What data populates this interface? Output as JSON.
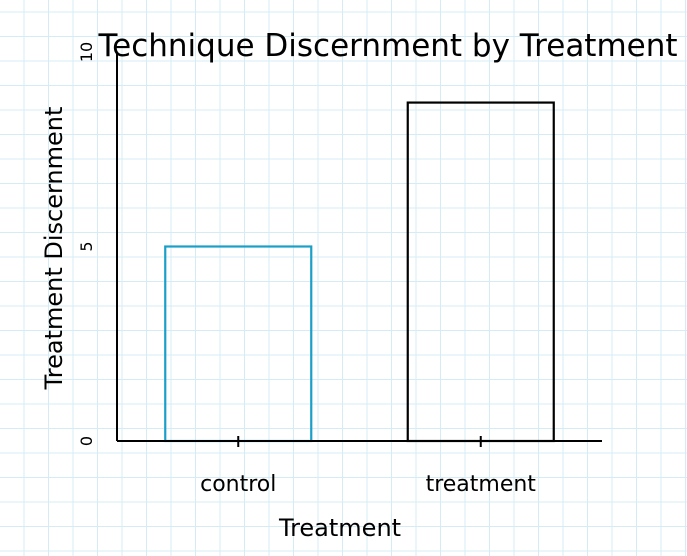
{
  "chart_data": {
    "type": "bar",
    "title": "Technique Discernment by Treatment",
    "xlabel": "Treatment",
    "ylabel": "Treatment Discernment",
    "categories": [
      "control",
      "treatment"
    ],
    "values": [
      5.0,
      8.7
    ],
    "bar_colors": [
      "#1a9fc9",
      "#000000"
    ],
    "ylim": [
      0,
      10
    ],
    "yticks": [
      0,
      5,
      10
    ],
    "grid": true,
    "grid_color": "#d6ecf5",
    "legend": "none"
  }
}
